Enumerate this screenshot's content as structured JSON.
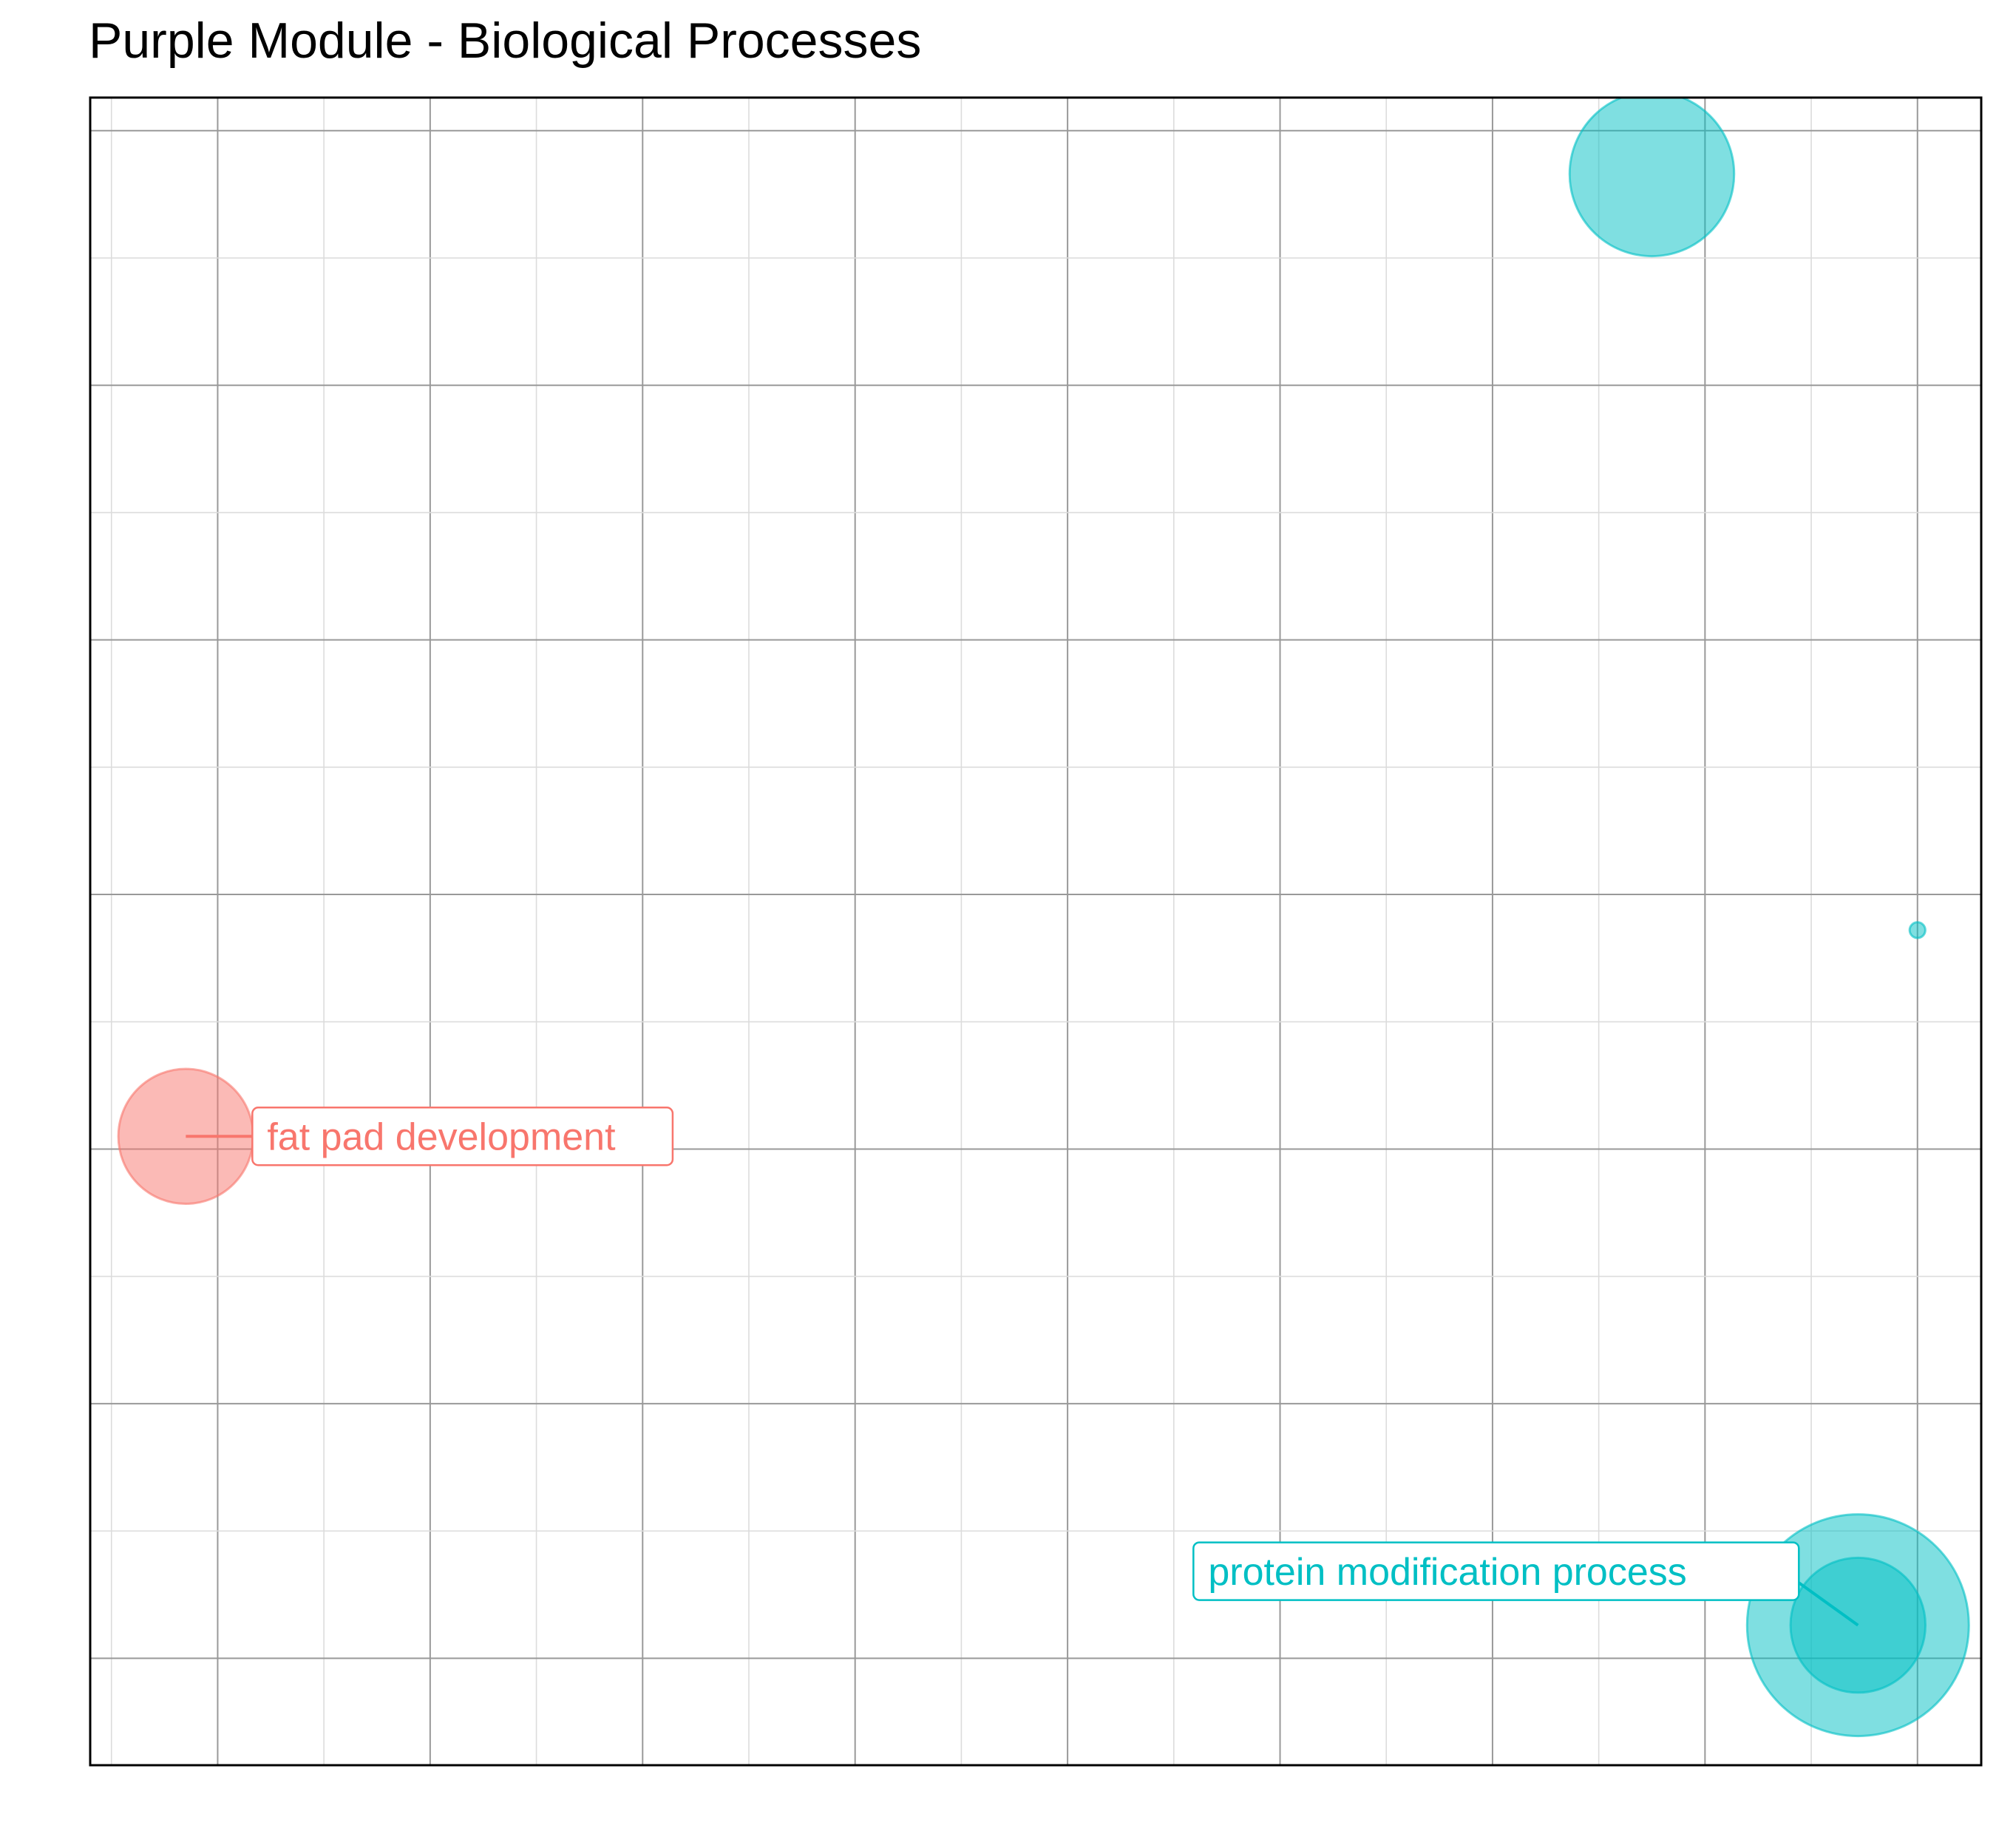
{
  "chart_data": {
    "type": "scatter",
    "title": "Purple Module - Biological Processes",
    "xlabel": "",
    "ylabel": "",
    "grid": true,
    "legend": "none",
    "xlim": [
      -0.6,
      8.3
    ],
    "ylim": [
      -0.42,
      6.13
    ],
    "colors": {
      "group_a": "#f8766d",
      "group_b": "#00bfc4"
    },
    "points": [
      {
        "x": -0.15,
        "y": 2.05,
        "size": 0.37,
        "group": "group_a",
        "label": "fat pad development"
      },
      {
        "x": 6.75,
        "y": 5.83,
        "size": 0.55,
        "group": "group_b",
        "label": ""
      },
      {
        "x": 8.0,
        "y": 2.86,
        "size": 0.005,
        "group": "group_b",
        "label": ""
      },
      {
        "x": 7.72,
        "y": 0.13,
        "size": 1.0,
        "group": "group_b",
        "label": ""
      },
      {
        "x": 7.72,
        "y": 0.13,
        "size": 0.37,
        "group": "group_b",
        "label": "protein modification process"
      }
    ]
  }
}
